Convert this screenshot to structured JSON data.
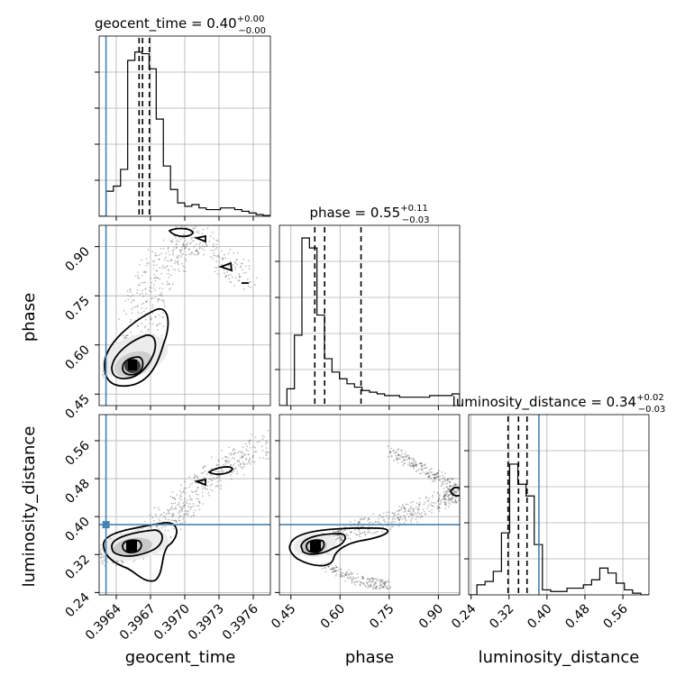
{
  "chart_data": {
    "type": "corner",
    "parameters": [
      "geocent_time",
      "phase",
      "luminosity_distance"
    ],
    "axis_labels": {
      "geocent_time": "geocent_time",
      "phase": "phase",
      "luminosity_distance": "luminosity_distance"
    },
    "ranges": {
      "geocent_time": [
        0.39625,
        0.39775
      ],
      "phase": [
        0.415,
        0.965
      ],
      "luminosity_distance": [
        0.235,
        0.615
      ]
    },
    "ticks": {
      "geocent_time": [
        0.3964,
        0.3967,
        0.397,
        0.3973,
        0.3976
      ],
      "phase": [
        0.45,
        0.6,
        0.75,
        0.9
      ],
      "luminosity_distance": [
        0.24,
        0.32,
        0.4,
        0.48,
        0.56
      ]
    },
    "tick_labels": {
      "geocent_time": [
        "0.3964",
        "0.3967",
        "0.3970",
        "0.3973",
        "0.3976"
      ],
      "phase": [
        "0.45",
        "0.60",
        "0.75",
        "0.90"
      ],
      "luminosity_distance": [
        "0.24",
        "0.32",
        "0.40",
        "0.48",
        "0.56"
      ]
    },
    "titles": {
      "geocent_time": {
        "main": "geocent_time = 0.40",
        "sup": "+0.00",
        "sub": "−0.00"
      },
      "phase": {
        "main": "phase = 0.55",
        "sup": "+0.11",
        "sub": "−0.03"
      },
      "luminosity_distance": {
        "main": "luminosity_distance = 0.34",
        "sup": "+0.02",
        "sub": "−0.03"
      }
    },
    "truths": {
      "geocent_time": 0.39631,
      "luminosity_distance": 0.383
    },
    "quantiles": {
      "geocent_time": [
        0.3966,
        0.39663,
        0.39669
      ],
      "phase": [
        0.523,
        0.553,
        0.664
      ],
      "luminosity_distance": [
        0.318,
        0.34,
        0.358
      ]
    },
    "histograms": {
      "geocent_time": [
        0.0,
        0.15,
        0.18,
        0.28,
        0.93,
        0.98,
        0.97,
        0.88,
        0.58,
        0.3,
        0.16,
        0.08,
        0.06,
        0.07,
        0.05,
        0.04,
        0.04,
        0.05,
        0.05,
        0.04,
        0.03,
        0.02,
        0.01,
        0.005
      ],
      "phase": [
        0.0,
        0.1,
        0.42,
        1.0,
        0.94,
        0.54,
        0.28,
        0.2,
        0.16,
        0.13,
        0.11,
        0.09,
        0.08,
        0.07,
        0.06,
        0.06,
        0.05,
        0.05,
        0.05,
        0.05,
        0.06,
        0.06,
        0.06,
        0.07
      ],
      "luminosity_distance": [
        0.0,
        0.06,
        0.08,
        0.14,
        0.37,
        0.78,
        0.66,
        0.59,
        0.3,
        0.03,
        0.02,
        0.02,
        0.04,
        0.04,
        0.06,
        0.09,
        0.16,
        0.13,
        0.07,
        0.03,
        0.01,
        0.0
      ]
    }
  }
}
